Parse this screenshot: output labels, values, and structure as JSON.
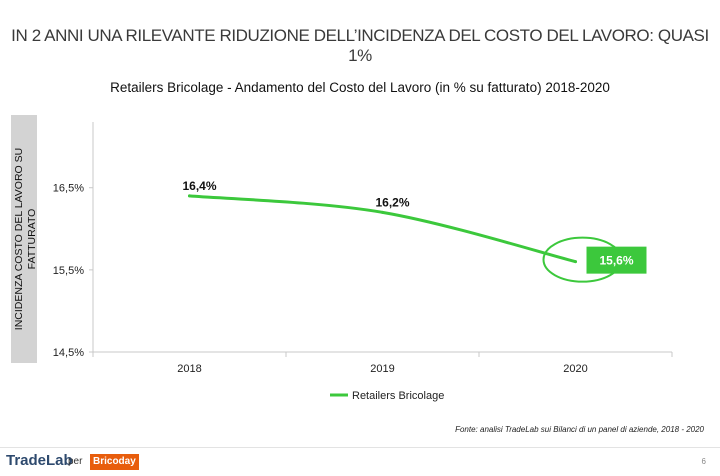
{
  "slide": {
    "title": "IN 2 ANNI UNA RILEVANTE RIDUZIONE DELL’INCIDENZA DEL COSTO DEL LAVORO: QUASI 1%",
    "source_note": "Fonte: analisi TradeLab sui Bilanci di un panel di aziende, 2018 - 2020",
    "page_number": "6",
    "brand": {
      "tradelab": "TradeLab",
      "per": "per",
      "brico": "Bricoday",
      "brico_color": "#e85d0c"
    }
  },
  "chart_data": {
    "type": "line",
    "title": "Retailers Bricolage - Andamento del Costo del Lavoro (in % su fatturato) 2018-2020",
    "ylabel_line1": "INCIDENZA COSTO DEL LAVORO SU",
    "ylabel_line2": "FATTURATO",
    "categories": [
      "2018",
      "2019",
      "2020"
    ],
    "y_ticks": [
      "16,5%",
      "15,5%",
      "14,5%"
    ],
    "y_tick_values": [
      16.5,
      15.5,
      14.5
    ],
    "ylim": [
      14.5,
      17.3
    ],
    "grid": false,
    "legend_position": "bottom",
    "series": [
      {
        "name": "Retailers Bricolage",
        "values": [
          16.4,
          16.2,
          15.6
        ],
        "labels": [
          "16,4%",
          "16,2%",
          "15,6%"
        ],
        "color": "#3cc83c"
      }
    ],
    "highlight": {
      "index": 2,
      "fill": "#3cc83c",
      "text_color": "#ffffff",
      "ring_color": "#3cc83c"
    }
  }
}
